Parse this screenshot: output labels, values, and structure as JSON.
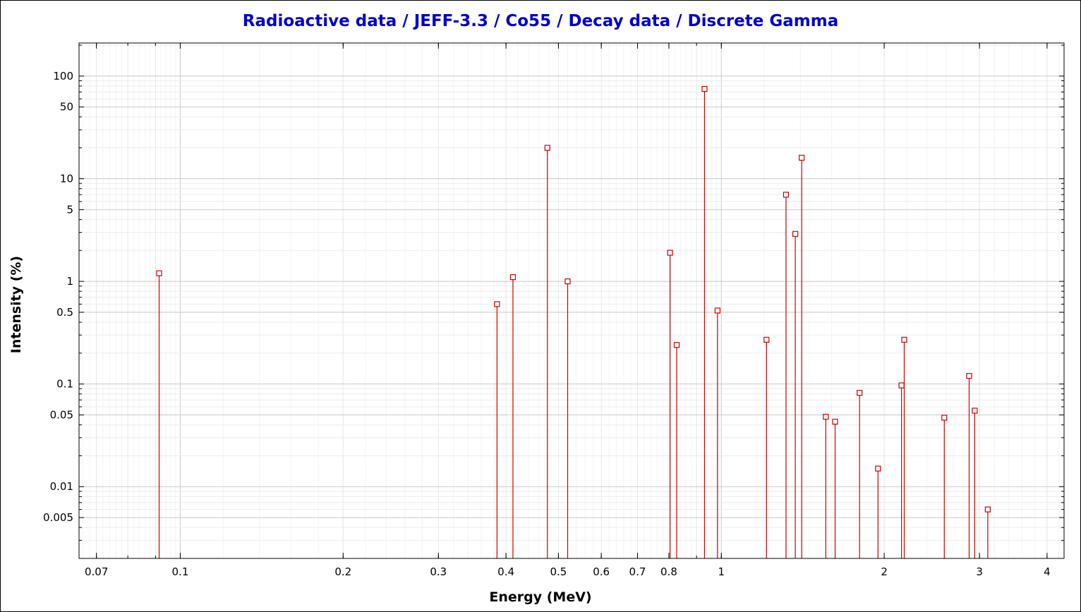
{
  "chart_data": {
    "type": "scatter",
    "style": "stem",
    "title": "Radioactive data / JEFF-3.3 / Co55 / Decay data / Discrete Gamma",
    "xlabel": "Energy (MeV)",
    "ylabel": "Intensity (%)",
    "xscale": "log",
    "yscale": "log",
    "xlim": [
      0.065,
      4.3
    ],
    "ylim": [
      0.002,
      210
    ],
    "grid": true,
    "x_ticks": [
      {
        "value": 0.07,
        "label": "0.07"
      },
      {
        "value": 0.1,
        "label": "0.1"
      },
      {
        "value": 0.2,
        "label": "0.2"
      },
      {
        "value": 0.3,
        "label": "0.3"
      },
      {
        "value": 0.4,
        "label": "0.4"
      },
      {
        "value": 0.5,
        "label": "0.5"
      },
      {
        "value": 0.6,
        "label": "0.6"
      },
      {
        "value": 0.7,
        "label": "0.7"
      },
      {
        "value": 0.8,
        "label": "0.8"
      },
      {
        "value": 1,
        "label": "1"
      },
      {
        "value": 2,
        "label": "2"
      },
      {
        "value": 3,
        "label": "3"
      },
      {
        "value": 4,
        "label": "4"
      }
    ],
    "y_ticks": [
      {
        "value": 100,
        "label": "100"
      },
      {
        "value": 50,
        "label": "50"
      },
      {
        "value": 10,
        "label": "10"
      },
      {
        "value": 5,
        "label": "5"
      },
      {
        "value": 1,
        "label": "1"
      },
      {
        "value": 0.5,
        "label": "0.5"
      },
      {
        "value": 0.1,
        "label": "0.1"
      },
      {
        "value": 0.05,
        "label": "0.05"
      },
      {
        "value": 0.01,
        "label": "0.01"
      },
      {
        "value": 0.005,
        "label": "0.005"
      }
    ],
    "series": [
      {
        "color": "#cc0000",
        "x": [
          0.0914,
          0.385,
          0.412,
          0.477,
          0.52,
          0.804,
          0.827,
          0.931,
          0.984,
          1.212,
          1.317,
          1.37,
          1.408,
          1.56,
          1.623,
          1.801,
          1.948,
          2.153,
          2.178,
          2.583,
          2.871,
          2.94,
          3.108
        ],
        "y": [
          1.2,
          0.6,
          1.1,
          20.0,
          1.0,
          1.9,
          0.24,
          75.0,
          0.52,
          0.27,
          7.0,
          2.9,
          16.0,
          0.048,
          0.043,
          0.082,
          0.015,
          0.097,
          0.27,
          0.047,
          0.12,
          0.055,
          0.006
        ]
      }
    ]
  }
}
